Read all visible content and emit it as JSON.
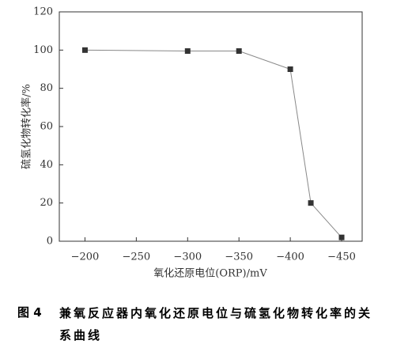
{
  "chart_data": {
    "type": "line",
    "xlabel": "氧化还原电位(ORP)/mV",
    "ylabel": "硫氢化物转化率/%",
    "x": [
      -200,
      -300,
      -350,
      -400,
      -420,
      -450
    ],
    "series": [
      {
        "color": "#333333",
        "values": [
          100,
          99.5,
          99.5,
          90,
          20,
          2
        ]
      }
    ],
    "xlim": [
      -175,
      -470
    ],
    "xticks": [
      {
        "value": -200,
        "label": "−200"
      },
      {
        "value": -250,
        "label": "−250"
      },
      {
        "value": -300,
        "label": "−300"
      },
      {
        "value": -350,
        "label": "−350"
      },
      {
        "value": -400,
        "label": "−400"
      },
      {
        "value": -450,
        "label": "−450"
      }
    ],
    "ylim": [
      0,
      120
    ],
    "yticks": [
      0,
      20,
      40,
      60,
      80,
      100,
      120
    ]
  },
  "caption": {
    "number": "图 4",
    "text": "兼氧反应器内氧化还原电位与硫氢化物转化率的关系曲线"
  }
}
